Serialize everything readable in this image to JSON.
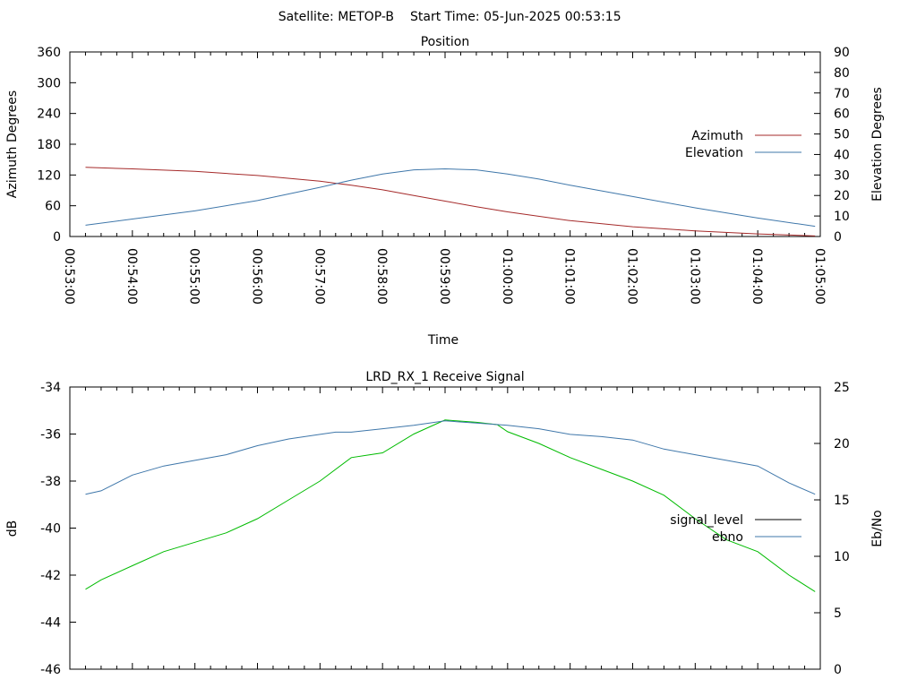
{
  "header": {
    "satellite": "Satellite: METOP-B",
    "start_time": "Start Time: 05-Jun-2025 00:53:15"
  },
  "chart_data": [
    {
      "type": "line",
      "title": "Position",
      "xlabel": "Time",
      "ylabel": "Azimuth Degrees",
      "y2label": "Elevation Degrees",
      "x_ticks": [
        "00:53:00",
        "00:54:00",
        "00:55:00",
        "00:56:00",
        "00:57:00",
        "00:58:00",
        "00:59:00",
        "01:00:00",
        "01:01:00",
        "01:02:00",
        "01:03:00",
        "01:04:00",
        "01:05:00"
      ],
      "xlim": [
        "00:53:00",
        "01:05:00"
      ],
      "ylim": [
        0,
        360
      ],
      "y_ticks": [
        0,
        60,
        120,
        180,
        240,
        300,
        360
      ],
      "y2lim": [
        0,
        90
      ],
      "y2_ticks": [
        0,
        10,
        20,
        30,
        40,
        50,
        60,
        70,
        80,
        90
      ],
      "legend_position": "right",
      "series": [
        {
          "name": "Azimuth",
          "axis": "left",
          "color": "#a52a2a",
          "x": [
            "00:53:15",
            "00:54:00",
            "00:55:00",
            "00:56:00",
            "00:57:00",
            "00:57:30",
            "00:58:00",
            "00:58:30",
            "00:59:00",
            "00:59:30",
            "01:00:00",
            "01:01:00",
            "01:02:00",
            "01:03:00",
            "01:04:00",
            "01:04:55"
          ],
          "y": [
            135,
            132,
            127,
            119,
            108,
            100,
            91,
            80,
            69,
            58,
            48,
            31,
            19,
            11,
            5,
            1
          ]
        },
        {
          "name": "Elevation",
          "axis": "right",
          "color": "#3f77aa",
          "x": [
            "00:53:15",
            "00:54:00",
            "00:55:00",
            "00:56:00",
            "00:57:00",
            "00:57:30",
            "00:58:00",
            "00:58:30",
            "00:59:00",
            "00:59:30",
            "01:00:00",
            "01:00:30",
            "01:01:00",
            "01:02:00",
            "01:03:00",
            "01:04:00",
            "01:04:55"
          ],
          "y": [
            5.5,
            8.5,
            12.5,
            17.5,
            24,
            27.5,
            30.5,
            32.5,
            33,
            32.5,
            30.5,
            28,
            25,
            19.5,
            14,
            9,
            5
          ]
        }
      ]
    },
    {
      "type": "line",
      "title": "LRD_RX_1 Receive Signal",
      "xlabel": "",
      "ylabel": "dB",
      "y2label": "Eb/No",
      "xlim": [
        "00:53:00",
        "01:05:00"
      ],
      "ylim": [
        -46,
        -34
      ],
      "y_ticks": [
        -46,
        -44,
        -42,
        -40,
        -38,
        -36,
        -34
      ],
      "y2lim": [
        0,
        25
      ],
      "y2_ticks": [
        0,
        5,
        10,
        15,
        20,
        25
      ],
      "legend_position": "right",
      "series": [
        {
          "name": "signal_level",
          "axis": "left",
          "color": "#00bb00",
          "x": [
            "00:53:15",
            "00:53:30",
            "00:54:00",
            "00:54:30",
            "00:55:00",
            "00:55:30",
            "00:56:00",
            "00:56:30",
            "00:57:00",
            "00:57:30",
            "00:58:00",
            "00:58:30",
            "00:58:50",
            "00:59:00",
            "00:59:30",
            "00:59:50",
            "01:00:00",
            "01:00:30",
            "01:01:00",
            "01:01:30",
            "01:02:00",
            "01:02:30",
            "01:03:00",
            "01:03:30",
            "01:04:00",
            "01:04:30",
            "01:04:55"
          ],
          "y": [
            -42.6,
            -42.2,
            -41.6,
            -41.0,
            -40.6,
            -40.2,
            -39.6,
            -38.8,
            -38.0,
            -37.0,
            -36.8,
            -36.0,
            -35.6,
            -35.4,
            -35.5,
            -35.6,
            -35.9,
            -36.4,
            -37.0,
            -37.5,
            -38.0,
            -38.6,
            -39.6,
            -40.5,
            -41.0,
            -42.0,
            -42.7
          ]
        },
        {
          "name": "ebno",
          "axis": "right",
          "color": "#3f77aa",
          "x": [
            "00:53:15",
            "00:53:30",
            "00:54:00",
            "00:54:30",
            "00:55:00",
            "00:55:30",
            "00:56:00",
            "00:56:30",
            "00:57:00",
            "00:57:15",
            "00:57:30",
            "00:58:00",
            "00:58:30",
            "00:59:00",
            "00:59:30",
            "01:00:00",
            "01:00:30",
            "01:01:00",
            "01:01:30",
            "01:02:00",
            "01:02:30",
            "01:03:00",
            "01:03:30",
            "01:04:00",
            "01:04:30",
            "01:04:55"
          ],
          "y": [
            15.5,
            15.8,
            17.2,
            18.0,
            18.5,
            19.0,
            19.8,
            20.4,
            20.8,
            21.0,
            21.0,
            21.3,
            21.6,
            22.0,
            21.8,
            21.6,
            21.3,
            20.8,
            20.6,
            20.3,
            19.5,
            19.0,
            18.5,
            18.0,
            16.5,
            15.5
          ]
        }
      ]
    }
  ]
}
